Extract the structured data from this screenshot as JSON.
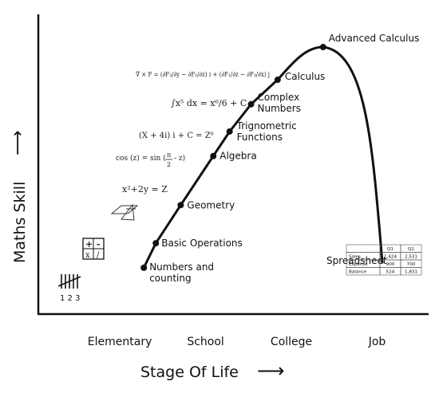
{
  "chart_data": {
    "type": "line",
    "title": "",
    "xlabel": "Stage Of Life",
    "ylabel": "Maths Skill",
    "x_arrow": "⟶",
    "y_arrow": "⟶",
    "x_categories": [
      "Elementary",
      "School",
      "College",
      "Job"
    ],
    "points": [
      {
        "label": "Numbers and counting",
        "lines": [
          "Numbers and",
          "counting"
        ],
        "stage": "Elementary",
        "x": 0.28,
        "skill": 0.17
      },
      {
        "label": "Basic Operations",
        "lines": [
          "Basic Operations"
        ],
        "stage": "Elementary",
        "x": 0.42,
        "skill": 0.26
      },
      {
        "label": "Geometry",
        "lines": [
          "Geometry"
        ],
        "stage": "School",
        "x": 0.71,
        "skill": 0.4
      },
      {
        "label": "Algebra",
        "lines": [
          "Algebra"
        ],
        "stage": "School",
        "x": 1.09,
        "skill": 0.58
      },
      {
        "label": "Trignometric Functions",
        "lines": [
          "Trignometric",
          "Functions"
        ],
        "stage": "School",
        "x": 1.28,
        "skill": 0.67
      },
      {
        "label": "Complex Numbers",
        "lines": [
          "Complex",
          "Numbers"
        ],
        "stage": "School",
        "x": 1.53,
        "skill": 0.77
      },
      {
        "label": "Calculus",
        "lines": [
          "Calculus"
        ],
        "stage": "College",
        "x": 1.84,
        "skill": 0.86
      },
      {
        "label": "Advanced Calculus",
        "lines": [
          "Advanced Calculus"
        ],
        "stage": "College",
        "x": 2.37,
        "skill": 0.98
      },
      {
        "label": "Spreadsheet",
        "lines": [
          "Spreadsheet"
        ],
        "stage": "Job",
        "x": 3.06,
        "skill": 0.19
      }
    ],
    "xlim": [
      -0.95,
      3.6
    ],
    "ylim": [
      0,
      1.1
    ]
  },
  "annotations": {
    "tally_numbers": "1 2 3",
    "ops_grid": [
      "+",
      "-",
      "x",
      "/"
    ],
    "algebra_formula": "x²+2y = Z",
    "trig_formula_left": "cos (z) = sin (",
    "trig_fraction": [
      "π",
      "2"
    ],
    "trig_formula_right": "- z)",
    "complex_formula": "(X + 4i) i + C = Z⁶",
    "integral_formula": "∫x⁵ dx = x⁶/6 + C",
    "curl_formula": "∇ × F = (∂F₃/∂y − ∂F₂/∂z) i + (∂F₁/∂z − ∂F₃/∂x) j"
  },
  "spreadsheet": {
    "headers": [
      "",
      "Q1",
      "Q2"
    ],
    "rows": [
      [
        "Sales",
        "1,424",
        "2,531"
      ],
      [
        "Expense",
        "900",
        "700"
      ],
      [
        "Balance",
        "524",
        "1,831"
      ]
    ]
  },
  "colors": {
    "ink": "#111111",
    "background": "#ffffff"
  }
}
